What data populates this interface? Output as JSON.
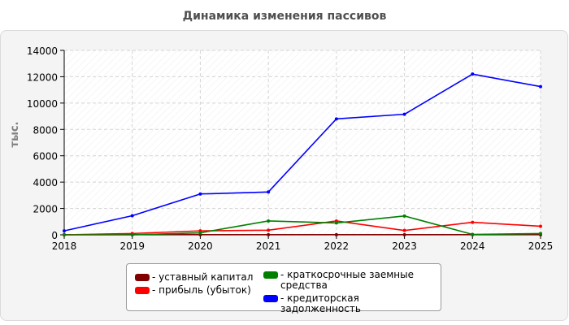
{
  "chart_data": {
    "type": "line",
    "title": "Динамика изменения пассивов",
    "ylabel": "тыс.",
    "xlabel": "",
    "x": [
      "2018",
      "2019",
      "2020",
      "2021",
      "2022",
      "2023",
      "2024",
      "2025"
    ],
    "ylim": [
      0,
      14000
    ],
    "yticks": [
      "0",
      "2000",
      "4000",
      "6000",
      "8000",
      "10000",
      "12000",
      "14000"
    ],
    "grid": true,
    "legend_position": "bottom",
    "series": [
      {
        "name": "- уставный капитал",
        "color": "#800000",
        "values": [
          10,
          10,
          10,
          10,
          10,
          10,
          10,
          10
        ]
      },
      {
        "name": "- прибыль (убыток)",
        "color": "#ff0000",
        "values": [
          0,
          100,
          300,
          350,
          1050,
          330,
          950,
          650
        ]
      },
      {
        "name": "- краткосрочные заемные средства",
        "color": "#008000",
        "values": [
          0,
          0,
          150,
          1050,
          900,
          1430,
          30,
          100
        ]
      },
      {
        "name": "- кредиторская задолженность",
        "color": "#0000ff",
        "values": [
          300,
          1450,
          3100,
          3250,
          8800,
          9150,
          12200,
          11250
        ]
      }
    ]
  }
}
